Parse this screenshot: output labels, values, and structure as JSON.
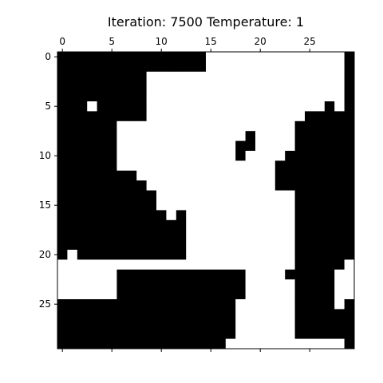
{
  "chart_data": {
    "type": "heatmap",
    "title": "Iteration: 7500 Temperature: 1",
    "xlabel": "",
    "ylabel": "",
    "grid": false,
    "colormap": {
      "0": "#000000",
      "1": "#ffffff"
    },
    "x_ticks": [
      0,
      5,
      10,
      15,
      20,
      25
    ],
    "x_tick_labels": [
      "0",
      "5",
      "10",
      "15",
      "20",
      "25"
    ],
    "y_ticks": [
      0,
      5,
      10,
      15,
      20,
      25
    ],
    "y_tick_labels": [
      "0",
      "5",
      "10",
      "15",
      "20",
      "25"
    ],
    "x_tick_position": "top",
    "xlim": [
      -0.5,
      29.5
    ],
    "ylim": [
      29.5,
      -0.5
    ],
    "rows": [
      "000000000000000111111111111110",
      "000000000000000111111111111110",
      "000000000111111111111111111110",
      "000000000111111111111111111110",
      "000000000111111111111111111110",
      "000100000111111111111111111010",
      "000000000111111111111111100000",
      "000000111111111111111111000000",
      "000000111111111111101111000000",
      "000000111111111111001111000000",
      "000000111111111111011110000000",
      "000000111111111111111100000000",
      "000000001111111111111100000000",
      "000000000111111111111100000000",
      "000000000011111111111111000000",
      "000000000011111111111111000000",
      "000000000001011111111111000000",
      "000000000000011111111111000000",
      "000000000000011111111111000000",
      "000000000000011111111111000000",
      "010000000000011111111111000000",
      "111111111111111111111111000001",
      "111111000000000000011110000011",
      "111111000000000000011111000011",
      "111111000000000000011111000011",
      "000000000000000000111111000010",
      "000000000000000000111111000000",
      "000000000000000000111111000000",
      "000000000000000000111111000000",
      "000000000000000001111111111110"
    ]
  }
}
